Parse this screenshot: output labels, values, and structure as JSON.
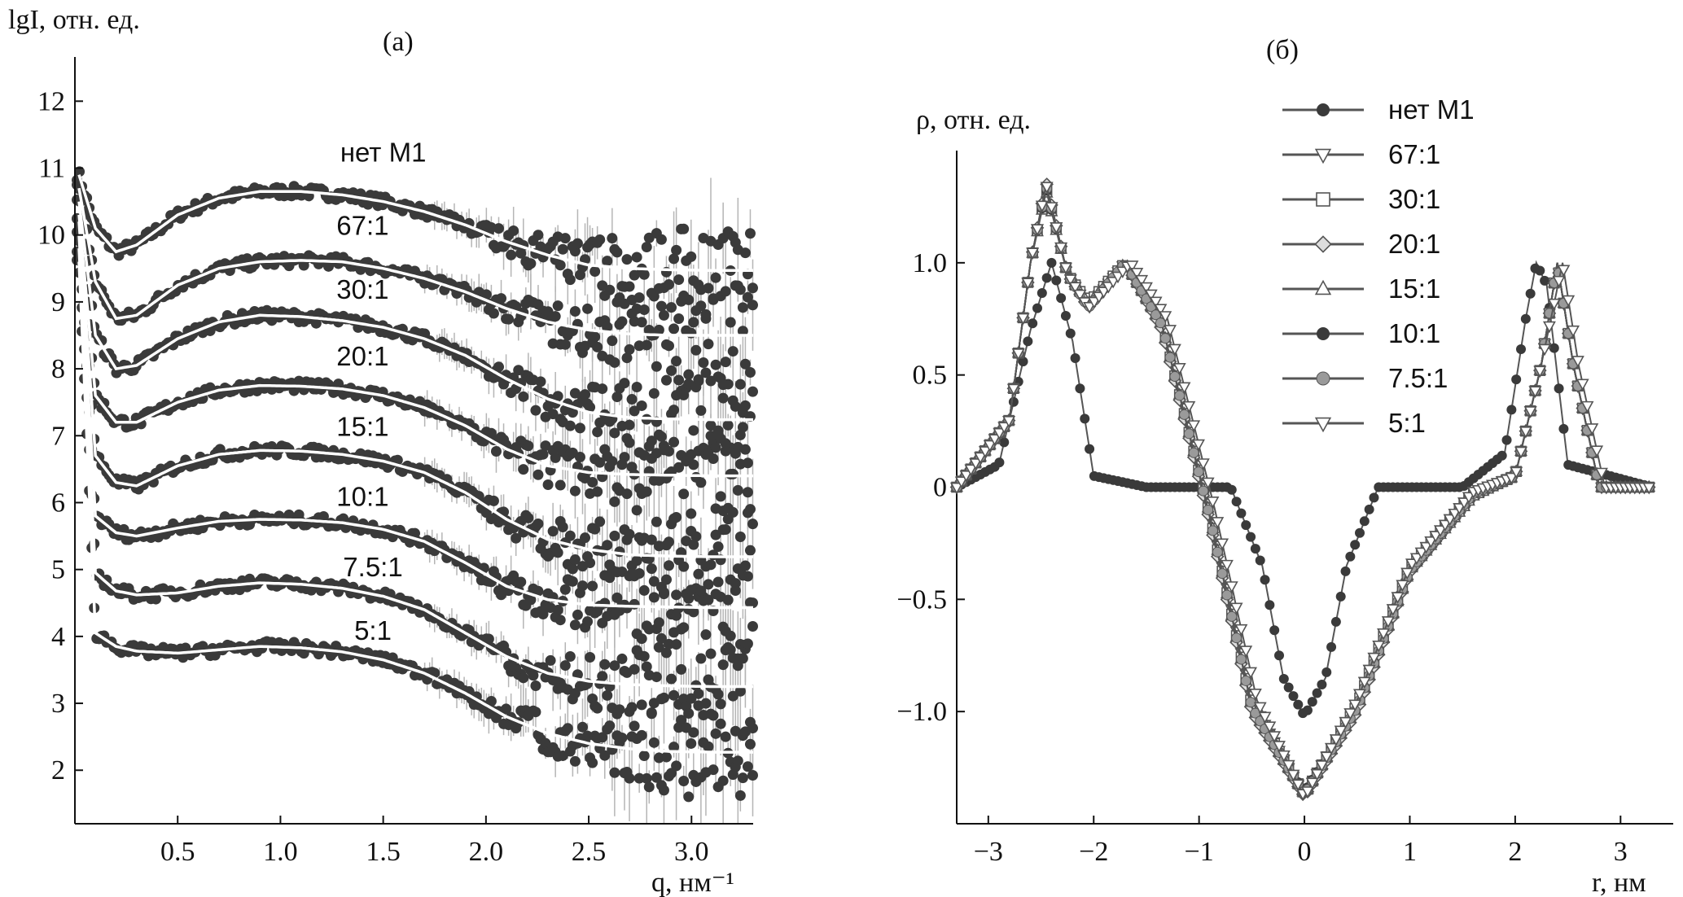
{
  "chart_data": [
    {
      "panel": "(а)",
      "type": "scatter",
      "ylabel": "lgI, отн. ед.",
      "xlabel": "q, нм⁻¹",
      "xlim": [
        0,
        3.3
      ],
      "ylim": [
        1.2,
        12.6
      ],
      "xticks": [
        "0.5",
        "1.0",
        "1.5",
        "2.0",
        "2.5",
        "3.0"
      ],
      "yticks": [
        "2",
        "3",
        "4",
        "5",
        "6",
        "7",
        "8",
        "9",
        "10",
        "11",
        "12"
      ],
      "points_style": "dark filled markers with grey error bars, white fitted curves",
      "series": [
        {
          "name": "нет M1",
          "label_at": [
            1.5,
            11.1
          ],
          "fit_q": [
            0.02,
            0.1,
            0.2,
            0.3,
            0.5,
            0.7,
            0.9,
            1.1,
            1.3,
            1.5,
            1.7,
            1.9,
            2.1,
            2.3,
            2.5,
            2.7,
            2.9,
            3.1,
            3.3
          ],
          "fit_lgI": [
            10.9,
            10.1,
            9.75,
            9.85,
            10.3,
            10.55,
            10.65,
            10.65,
            10.6,
            10.5,
            10.35,
            10.15,
            9.9,
            9.7,
            9.55,
            9.5,
            9.48,
            9.47,
            9.47
          ]
        },
        {
          "name": "67:1",
          "label_at": [
            1.4,
            10.0
          ],
          "fit_q": [
            0.02,
            0.1,
            0.2,
            0.3,
            0.5,
            0.7,
            0.9,
            1.1,
            1.3,
            1.5,
            1.7,
            1.9,
            2.1,
            2.3,
            2.5,
            2.7,
            2.9,
            3.1,
            3.3
          ],
          "fit_lgI": [
            10.7,
            9.3,
            8.75,
            8.8,
            9.25,
            9.5,
            9.6,
            9.62,
            9.6,
            9.5,
            9.35,
            9.15,
            8.9,
            8.7,
            8.58,
            8.52,
            8.5,
            8.5,
            8.5
          ]
        },
        {
          "name": "30:1",
          "label_at": [
            1.4,
            9.05
          ],
          "fit_q": [
            0.02,
            0.1,
            0.2,
            0.3,
            0.5,
            0.7,
            0.9,
            1.1,
            1.3,
            1.5,
            1.7,
            1.9,
            2.1,
            2.3,
            2.5,
            2.7,
            2.9,
            3.1,
            3.3
          ],
          "fit_lgI": [
            10.5,
            8.5,
            8.0,
            8.05,
            8.45,
            8.7,
            8.8,
            8.78,
            8.72,
            8.62,
            8.45,
            8.2,
            7.85,
            7.55,
            7.35,
            7.27,
            7.25,
            7.24,
            7.24
          ]
        },
        {
          "name": "20:1",
          "label_at": [
            1.4,
            8.05
          ],
          "fit_q": [
            0.02,
            0.1,
            0.2,
            0.3,
            0.5,
            0.7,
            0.9,
            1.1,
            1.3,
            1.5,
            1.7,
            1.9,
            2.1,
            2.3,
            2.5,
            2.7,
            2.9,
            3.1,
            3.3
          ],
          "fit_lgI": [
            10.3,
            7.6,
            7.2,
            7.2,
            7.5,
            7.68,
            7.75,
            7.74,
            7.7,
            7.6,
            7.42,
            7.15,
            6.8,
            6.55,
            6.45,
            6.42,
            6.41,
            6.4,
            6.4
          ]
        },
        {
          "name": "15:1",
          "label_at": [
            1.4,
            7.0
          ],
          "fit_q": [
            0.02,
            0.1,
            0.2,
            0.3,
            0.5,
            0.7,
            0.9,
            1.1,
            1.3,
            1.5,
            1.7,
            1.9,
            2.1,
            2.3,
            2.5,
            2.7,
            2.9,
            3.1,
            3.3
          ],
          "fit_lgI": [
            10.2,
            6.7,
            6.3,
            6.25,
            6.55,
            6.72,
            6.78,
            6.77,
            6.72,
            6.62,
            6.45,
            6.15,
            5.75,
            5.45,
            5.3,
            5.22,
            5.2,
            5.19,
            5.19
          ]
        },
        {
          "name": "10:1",
          "label_at": [
            1.4,
            5.95
          ],
          "fit_q": [
            0.02,
            0.1,
            0.2,
            0.3,
            0.5,
            0.7,
            0.9,
            1.1,
            1.3,
            1.5,
            1.7,
            1.9,
            2.1,
            2.3,
            2.5,
            2.7,
            2.9,
            3.1,
            3.3
          ],
          "fit_lgI": [
            10.0,
            5.8,
            5.55,
            5.5,
            5.62,
            5.72,
            5.75,
            5.74,
            5.7,
            5.6,
            5.42,
            5.1,
            4.75,
            4.55,
            4.47,
            4.45,
            4.44,
            4.43,
            4.43
          ]
        },
        {
          "name": "7.5:1",
          "label_at": [
            1.45,
            4.9
          ],
          "fit_q": [
            0.02,
            0.1,
            0.2,
            0.3,
            0.5,
            0.7,
            0.9,
            1.1,
            1.3,
            1.5,
            1.7,
            1.9,
            2.1,
            2.3,
            2.5,
            2.7,
            2.9,
            3.1,
            3.3
          ],
          "fit_lgI": [
            9.8,
            4.95,
            4.68,
            4.62,
            4.65,
            4.75,
            4.8,
            4.78,
            4.72,
            4.6,
            4.4,
            4.05,
            3.7,
            3.45,
            3.33,
            3.28,
            3.26,
            3.25,
            3.25
          ]
        },
        {
          "name": "5:1",
          "label_at": [
            1.45,
            3.95
          ],
          "fit_q": [
            0.02,
            0.1,
            0.2,
            0.3,
            0.5,
            0.7,
            0.9,
            1.1,
            1.3,
            1.5,
            1.7,
            1.9,
            2.1,
            2.3,
            2.5,
            2.7,
            2.9,
            3.1,
            3.3
          ],
          "fit_lgI": [
            9.6,
            4.05,
            3.85,
            3.78,
            3.75,
            3.8,
            3.85,
            3.83,
            3.77,
            3.65,
            3.45,
            3.15,
            2.8,
            2.55,
            2.4,
            2.32,
            2.28,
            2.27,
            2.27
          ]
        }
      ]
    },
    {
      "panel": "(б)",
      "type": "line",
      "ylabel": "ρ, отн. ед.",
      "xlabel": "r, нм",
      "xlim": [
        -3.3,
        3.5
      ],
      "ylim": [
        -1.5,
        1.5
      ],
      "xticks": [
        "−3",
        "−2",
        "−1",
        "0",
        "1",
        "2",
        "3"
      ],
      "yticks": [
        "−1.0",
        "−0.5",
        "0",
        "0.5",
        "1.0"
      ],
      "legend": [
        "нет M1",
        "67:1",
        "30:1",
        "20:1",
        "15:1",
        "10:1",
        "7.5:1",
        "5:1"
      ],
      "legend_position": "top-right",
      "series": [
        {
          "name": "нет M1",
          "marker": "filled-circle",
          "x": [
            -3.3,
            -2.9,
            -2.6,
            -2.4,
            -2.2,
            -2.0,
            -1.5,
            -0.7,
            -0.4,
            -0.2,
            0,
            0.2,
            0.4,
            0.7,
            1.5,
            1.9,
            2.1,
            2.2,
            2.3,
            2.5,
            3.3
          ],
          "y": [
            0,
            0.1,
            0.7,
            1.0,
            0.65,
            0.05,
            0,
            0,
            -0.35,
            -0.85,
            -1.02,
            -0.85,
            -0.35,
            0,
            0,
            0.15,
            0.75,
            1.0,
            0.9,
            0.1,
            0
          ]
        },
        {
          "name": "67:1",
          "marker": "triangle-down",
          "x": [
            -3.3,
            -2.8,
            -2.6,
            -2.45,
            -2.25,
            -2.05,
            -1.7,
            -1.35,
            -0.9,
            -0.5,
            0,
            0.5,
            1.0,
            1.6,
            2.0,
            2.25,
            2.4,
            2.55,
            2.8,
            3.3
          ],
          "y": [
            0,
            0.3,
            1.0,
            1.35,
            0.95,
            0.8,
            1.0,
            0.75,
            -0.1,
            -0.95,
            -1.38,
            -0.95,
            -0.35,
            -0.02,
            0.05,
            0.55,
            1.0,
            0.55,
            0,
            0
          ]
        },
        {
          "name": "30:1",
          "marker": "open-square",
          "x": [
            -3.3,
            -2.8,
            -2.6,
            -2.45,
            -2.25,
            -2.05,
            -1.7,
            -1.35,
            -0.9,
            -0.5,
            0,
            0.5,
            1.0,
            1.6,
            2.0,
            2.25,
            2.4,
            2.55,
            2.8,
            3.3
          ],
          "y": [
            0,
            0.3,
            1.0,
            1.33,
            0.95,
            0.82,
            1.0,
            0.72,
            -0.12,
            -0.97,
            -1.37,
            -0.97,
            -0.36,
            -0.03,
            0.05,
            0.55,
            1.0,
            0.55,
            0,
            0
          ]
        },
        {
          "name": "20:1",
          "marker": "open-diamond",
          "x": [
            -3.3,
            -2.8,
            -2.6,
            -2.45,
            -2.25,
            -2.05,
            -1.7,
            -1.35,
            -0.9,
            -0.5,
            0,
            0.5,
            1.0,
            1.6,
            2.0,
            2.25,
            2.4,
            2.55,
            2.8,
            3.3
          ],
          "y": [
            0,
            0.3,
            1.0,
            1.36,
            0.95,
            0.8,
            1.0,
            0.7,
            -0.15,
            -1.0,
            -1.38,
            -1.0,
            -0.38,
            -0.04,
            0.05,
            0.55,
            1.0,
            0.55,
            0,
            0
          ]
        },
        {
          "name": "15:1",
          "marker": "open-triangle-up",
          "x": [
            -3.3,
            -2.8,
            -2.6,
            -2.45,
            -2.25,
            -2.05,
            -1.7,
            -1.35,
            -0.9,
            -0.5,
            0,
            0.5,
            1.0,
            1.6,
            2.0,
            2.25,
            2.4,
            2.55,
            2.8,
            3.3
          ],
          "y": [
            0,
            0.3,
            1.0,
            1.32,
            0.95,
            0.82,
            1.0,
            0.72,
            -0.12,
            -0.98,
            -1.37,
            -0.98,
            -0.37,
            -0.04,
            0.05,
            0.55,
            1.0,
            0.55,
            0,
            0
          ]
        },
        {
          "name": "10:1",
          "marker": "filled-circle",
          "x": [
            -3.3,
            -2.8,
            -2.6,
            -2.45,
            -2.25,
            -2.05,
            -1.7,
            -1.35,
            -0.9,
            -0.5,
            0,
            0.5,
            1.0,
            1.6,
            2.0,
            2.25,
            2.4,
            2.55,
            2.8,
            3.3
          ],
          "y": [
            0,
            0.3,
            1.0,
            1.33,
            0.95,
            0.8,
            1.0,
            0.72,
            -0.13,
            -0.98,
            -1.36,
            -0.98,
            -0.37,
            -0.03,
            0.05,
            0.55,
            1.0,
            0.55,
            0,
            0
          ]
        },
        {
          "name": "7.5:1",
          "marker": "grey-circle",
          "x": [
            -3.3,
            -2.8,
            -2.6,
            -2.45,
            -2.25,
            -2.05,
            -1.7,
            -1.35,
            -0.9,
            -0.5,
            0,
            0.5,
            1.0,
            1.6,
            2.0,
            2.25,
            2.4,
            2.55,
            2.8,
            3.3
          ],
          "y": [
            0,
            0.3,
            1.0,
            1.34,
            0.95,
            0.8,
            1.0,
            0.72,
            -0.13,
            -0.98,
            -1.37,
            -0.98,
            -0.37,
            -0.03,
            0.05,
            0.55,
            1.0,
            0.55,
            0,
            0
          ]
        },
        {
          "name": "5:1",
          "marker": "triangle-down",
          "x": [
            -3.3,
            -2.8,
            -2.6,
            -2.45,
            -2.25,
            -2.05,
            -1.65,
            -1.3,
            -0.85,
            -0.45,
            0,
            0.5,
            1.0,
            1.6,
            2.0,
            2.25,
            2.45,
            2.6,
            2.85,
            3.3
          ],
          "y": [
            0,
            0.3,
            1.0,
            1.35,
            0.95,
            0.8,
            1.0,
            0.75,
            -0.1,
            -0.95,
            -1.38,
            -0.95,
            -0.35,
            -0.02,
            0.05,
            0.55,
            1.0,
            0.55,
            0,
            0
          ]
        }
      ]
    }
  ]
}
